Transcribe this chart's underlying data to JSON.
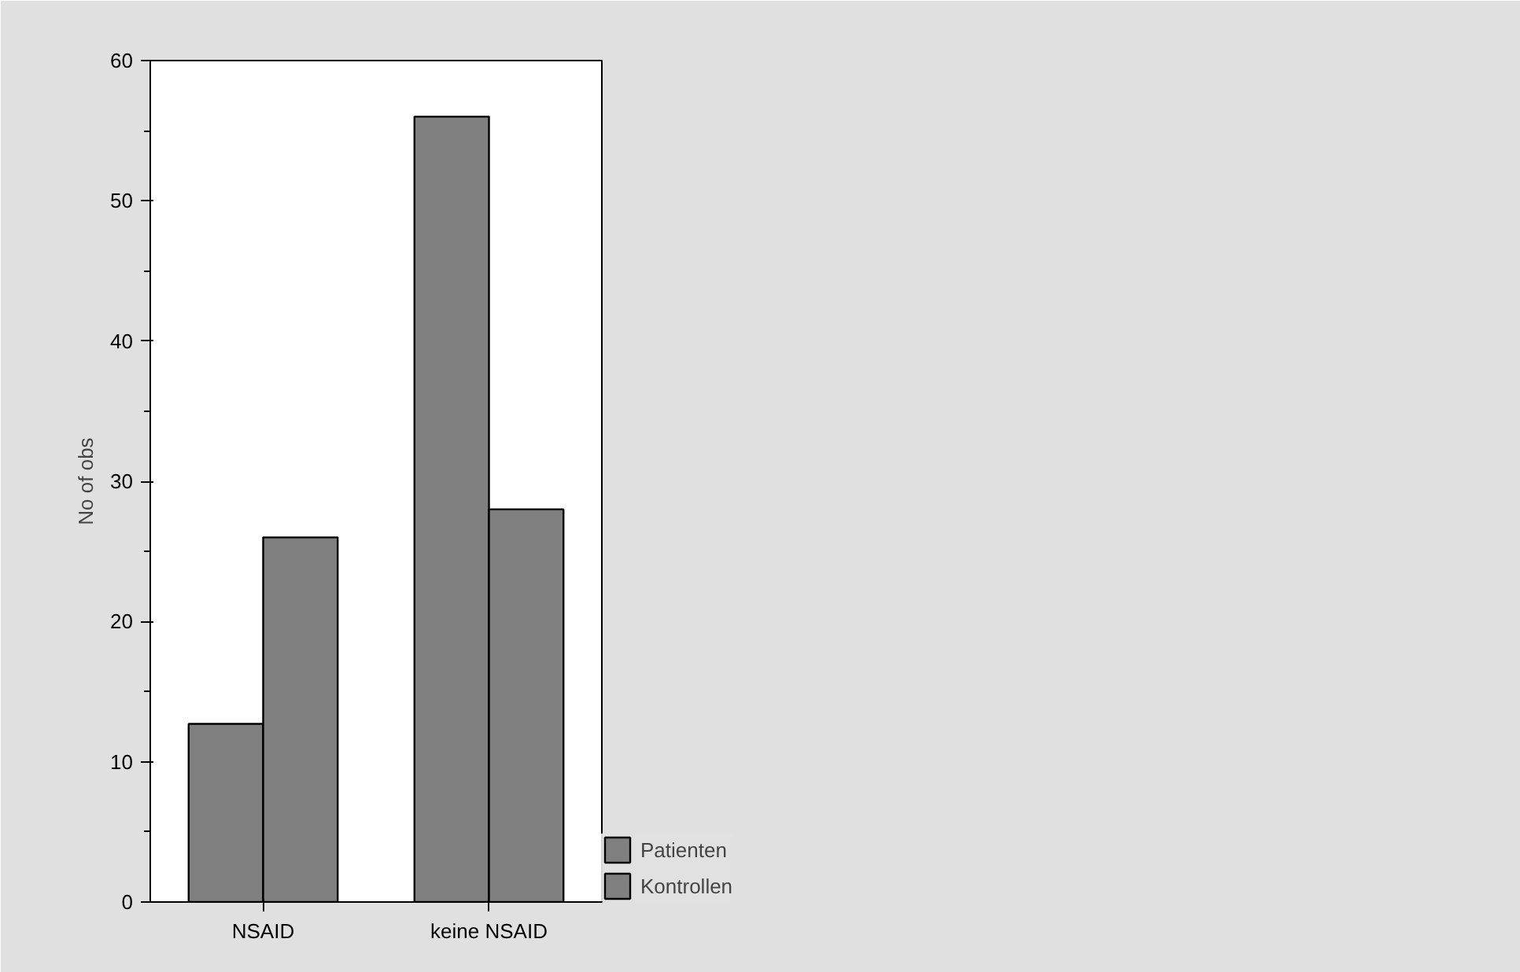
{
  "chart_data": {
    "type": "bar",
    "ylabel": "No of obs",
    "categories": [
      "NSAID",
      "keine NSAID"
    ],
    "series": [
      {
        "name": "Patienten",
        "color": "#808080",
        "values": [
          12.7,
          56
        ]
      },
      {
        "name": "Kontrollen",
        "color": "#808080",
        "values": [
          26,
          28
        ]
      }
    ],
    "ylim": [
      0,
      60
    ],
    "yticks": [
      0,
      10,
      20,
      30,
      40,
      50,
      60
    ],
    "grid": false,
    "legend": "bottom right"
  }
}
